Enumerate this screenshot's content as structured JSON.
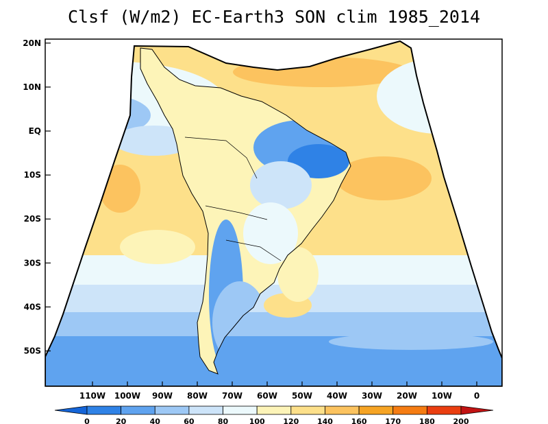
{
  "title": "Clsf (W/m2) EC-Earth3 SON clim 1985_2014",
  "lat_ticks": [
    {
      "label": "20N",
      "lat": 20
    },
    {
      "label": "10N",
      "lat": 10
    },
    {
      "label": "EQ",
      "lat": 0
    },
    {
      "label": "10S",
      "lat": -10
    },
    {
      "label": "20S",
      "lat": -20
    },
    {
      "label": "30S",
      "lat": -30
    },
    {
      "label": "40S",
      "lat": -40
    },
    {
      "label": "50S",
      "lat": -50
    }
  ],
  "lon_ticks": [
    {
      "label": "110W",
      "lon": -110
    },
    {
      "label": "100W",
      "lon": -100
    },
    {
      "label": "90W",
      "lon": -90
    },
    {
      "label": "80W",
      "lon": -80
    },
    {
      "label": "70W",
      "lon": -70
    },
    {
      "label": "60W",
      "lon": -60
    },
    {
      "label": "50W",
      "lon": -50
    },
    {
      "label": "40W",
      "lon": -40
    },
    {
      "label": "30W",
      "lon": -30
    },
    {
      "label": "20W",
      "lon": -20
    },
    {
      "label": "10W",
      "lon": -10
    },
    {
      "label": "0",
      "lon": 0
    }
  ],
  "colorbar": {
    "labels": [
      "0",
      "20",
      "40",
      "60",
      "80",
      "100",
      "120",
      "140",
      "160",
      "170",
      "180",
      "200"
    ],
    "colors": [
      "#1565d8",
      "#2f82e6",
      "#5fa3ef",
      "#9dc8f5",
      "#cde4f9",
      "#ecf9fc",
      "#fdf4b8",
      "#fde08a",
      "#fcc35f",
      "#f6a424",
      "#f57c12",
      "#ea3e10",
      "#c21313"
    ]
  }
}
